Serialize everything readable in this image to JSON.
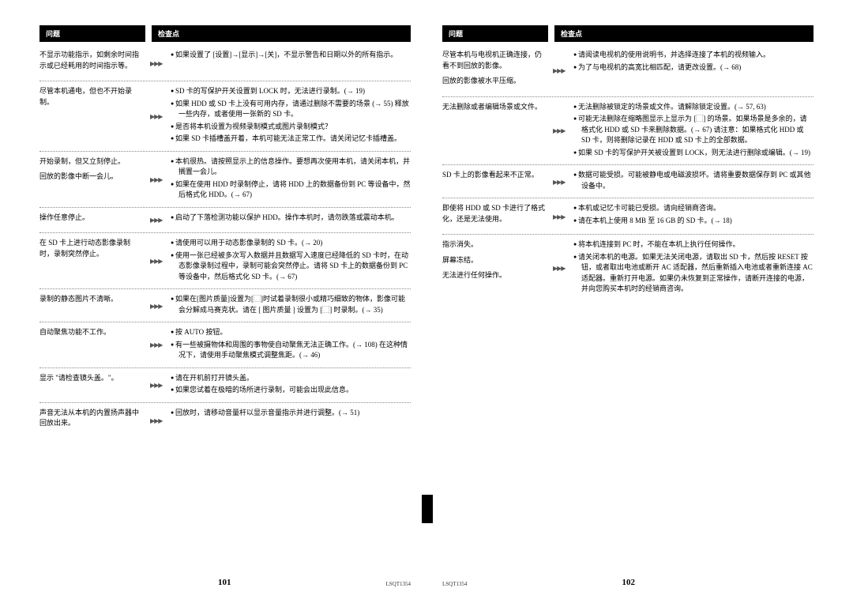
{
  "header": {
    "problem": "问题",
    "check": "检查点"
  },
  "arrow": "▶▶▶",
  "doc_code": "LSQT1354",
  "left": {
    "page_num": "101",
    "rows": [
      {
        "problems": [
          "不显示功能指示，如剩余时间指示或已经耗用的时间指示等。"
        ],
        "checks": [
          "如果设置了 [设置]→[显示]→[关]，不显示警告和日期以外的所有指示。"
        ]
      },
      {
        "problems": [
          "尽管本机通电，但也不开始录制。"
        ],
        "checks": [
          "SD 卡的写保护开关设置到 LOCK 时，无法进行录制。(→ 19)",
          "如果 HDD 或 SD 卡上没有可用内存，请通过删除不需要的场景 (→ 55) 释放一些内存，或者使用一张新的 SD 卡。",
          "是否将本机设置为视频录制模式或图片录制模式？",
          "如果 SD 卡插槽盖开着，本机可能无法正常工作。请关闭记忆卡插槽盖。"
        ]
      },
      {
        "problems": [
          "开始录制，但又立刻停止。",
          "回放的影像中断一会儿。"
        ],
        "checks": [
          "本机很热。请按照显示上的信息操作。要想再次使用本机，请关闭本机，并搁置一会儿。",
          "如果在使用 HDD 时录制停止，请将 HDD 上的数据备份到 PC 等设备中，然后格式化 HDD。(→ 67)"
        ]
      },
      {
        "problems": [
          "操作任意停止。"
        ],
        "checks": [
          "启动了下落检测功能以保护 HDD。操作本机时，请勿跌落或震动本机。"
        ]
      },
      {
        "problems": [
          "在 SD 卡上进行动态影像录制时，录制突然停止。"
        ],
        "checks": [
          "请使用可以用于动态影像录制的 SD 卡。(→ 20)",
          "使用一张已经被多次写入数据并且数据写入速度已经降低的 SD 卡时，在动态影像录制过程中，录制可能会突然停止。请将 SD 卡上的数据备份到 PC 等设备中，然后格式化 SD 卡。(→ 67)"
        ]
      },
      {
        "problems": [
          "录制的静态图片不清晰。"
        ],
        "checks": [
          "如果在[图片质量]设置为[⬚]时试着录制很小或精巧细致的物体，影像可能会分解成马赛克状。请在 [ 图片质量 ] 设置为 [⬚] 时录制。(→ 35)"
        ]
      },
      {
        "problems": [
          "自动聚焦功能不工作。"
        ],
        "checks": [
          "按 AUTO 按钮。",
          "有一些被摄物体和周围的事物使自动聚焦无法正确工作。(→ 108) 在这种情况下，请使用手动聚焦模式调整焦距。(→ 46)"
        ]
      },
      {
        "problems": [
          "显示 \"请检查镜头盖。\"。"
        ],
        "checks": [
          "请在开机前打开镜头盖。",
          "如果您试着在极暗的场所进行录制，可能会出现此信息。"
        ]
      },
      {
        "problems": [
          "声音无法从本机的内置扬声器中回放出来。"
        ],
        "checks": [
          "回放时，请移动音量杆以显示音量指示并进行调整。(→ 51)"
        ]
      }
    ]
  },
  "right": {
    "page_num": "102",
    "rows": [
      {
        "problems": [
          "尽管本机与电视机正确连接，仍看不到回放的影像。",
          "回放的影像被水平压缩。"
        ],
        "checks": [
          "请阅读电视机的使用说明书，并选择连接了本机的视频输入。",
          "为了与电视机的高宽比相匹配，请更改设置。(→ 68)"
        ]
      },
      {
        "problems": [
          "无法删除或者编辑场景或文件。"
        ],
        "checks": [
          "无法删除被锁定的场景或文件。请解除锁定设置。(→ 57, 63)",
          "可能无法删除在缩略图显示上显示为 [⬚] 的场景。如果场景是多余的，请格式化 HDD 或 SD 卡来删除数据。(→ 67) 请注意：如果格式化 HDD 或 SD 卡，则将删除记录在 HDD 或 SD 卡上的全部数据。",
          "如果 SD 卡的写保护开关被设置到 LOCK，则无法进行删除或编辑。(→ 19)"
        ]
      },
      {
        "problems": [
          "SD 卡上的影像看起来不正常。"
        ],
        "checks": [
          "数据可能受损。可能被静电或电磁波损坏。请将重要数据保存到 PC 或其他设备中。"
        ]
      },
      {
        "problems": [
          "即使将 HDD 或 SD 卡进行了格式化，还是无法使用。"
        ],
        "checks": [
          "本机或记忆卡可能已受损。请向经销商咨询。",
          "请在本机上使用 8 MB 至 16 GB 的 SD 卡。(→ 18)"
        ]
      },
      {
        "problems": [
          "指示消失。",
          "屏幕冻结。",
          "无法进行任何操作。"
        ],
        "checks": [
          "将本机连接到 PC 时，不能在本机上执行任何操作。",
          "请关闭本机的电源。如果无法关闭电源，请取出 SD 卡，然后按 RESET 按钮，或者取出电池或断开 AC 适配器，然后重新插入电池或者重新连接 AC 适配器。重新打开电源。如果仍未恢复到正常操作，请断开连接的电源，并向您购买本机时的经销商咨询。"
        ]
      }
    ]
  }
}
